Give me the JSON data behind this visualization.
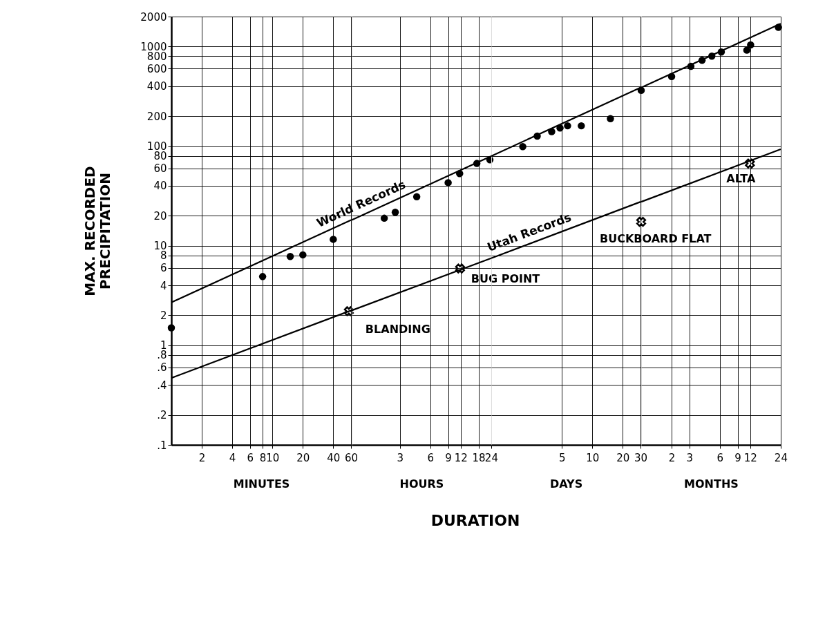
{
  "chart_data": [
    {
      "type": "scatter",
      "xlabel": "MINUTES",
      "ylabel": "MAX. RECORDED\nPRECIPITATION",
      "log": "xy",
      "grid": true,
      "xlim": [
        1,
        60
      ],
      "xticks": [
        2,
        4,
        6,
        8,
        10,
        20,
        40,
        60
      ],
      "ylim": [
        0.1,
        2000
      ],
      "yticks": [
        {
          "value": 0.1,
          "label": ".1"
        },
        {
          "value": 0.2,
          "label": ".2"
        },
        {
          "value": 0.4,
          "label": ".4"
        },
        {
          "value": 0.6,
          "label": ".6"
        },
        {
          "value": 0.8,
          "label": ".8"
        },
        1,
        2,
        4,
        6,
        8,
        10,
        20,
        40,
        60,
        80,
        100,
        200,
        400,
        600,
        800,
        1000,
        2000
      ],
      "series": [
        {
          "type": "line",
          "color": "#000000",
          "x": [
            1,
            60
          ],
          "values": [
            2.7,
            18.1
          ]
        },
        {
          "marker": "circle",
          "color": "#000000",
          "x": [
            1,
            8,
            15,
            20,
            40
          ],
          "values": [
            1.5,
            4.9,
            7.8,
            8.1,
            11.6
          ]
        },
        {
          "type": "line",
          "color": "#000000",
          "x": [
            1,
            60
          ],
          "values": [
            0.47,
            2.24
          ]
        },
        {
          "marker": "cross",
          "color": "#000000",
          "x": [
            57
          ],
          "values": [
            2.2
          ]
        }
      ],
      "annotations": [
        {
          "text": "BLANDING",
          "x": 57,
          "y": 2.2
        },
        "DURATION"
      ]
    },
    {
      "type": "scatter",
      "xlabel": "HOURS",
      "log": "xy",
      "grid": true,
      "tick_labels": "x",
      "xlim": [
        1,
        24
      ],
      "xticks": [
        3,
        6,
        9,
        12,
        18,
        24
      ],
      "ylim": [
        0.1,
        2000
      ],
      "yticks": [
        0.1,
        0.2,
        0.4,
        0.6,
        0.8,
        1,
        2,
        4,
        6,
        8,
        10,
        20,
        40,
        60,
        80,
        100,
        200,
        400,
        600,
        800,
        1000,
        2000
      ],
      "series": [
        {
          "name": "World Records",
          "type": "line",
          "color": "#000000",
          "x": [
            1,
            24
          ],
          "values": [
            18.1,
            79.5
          ]
        },
        {
          "marker": "circle",
          "color": "#000000",
          "x": [
            2.1,
            2.7,
            4.4,
            9,
            11.7,
            17.3,
            23.3
          ],
          "values": [
            18.9,
            21.7,
            31,
            43,
            53,
            67,
            73
          ]
        },
        {
          "type": "line",
          "color": "#000000",
          "x": [
            1,
            24
          ],
          "values": [
            2.24,
            7.5
          ]
        },
        {
          "marker": "cross",
          "color": "#000000",
          "x": [
            11.8
          ],
          "values": [
            5.9
          ]
        }
      ],
      "annotations": [
        {
          "text": "BUG POINT",
          "x": 11.8,
          "y": 5.9
        }
      ]
    },
    {
      "type": "scatter",
      "xlabel": "DAYS",
      "log": "xy",
      "grid": true,
      "tick_labels": "x",
      "xlim": [
        1,
        30
      ],
      "xticks": [
        5,
        10,
        20,
        30
      ],
      "ylim": [
        0.1,
        2000
      ],
      "yticks": [
        0.1,
        0.2,
        0.4,
        0.6,
        0.8,
        1,
        2,
        4,
        6,
        8,
        10,
        20,
        40,
        60,
        80,
        100,
        200,
        400,
        600,
        800,
        1000,
        2000
      ],
      "series": [
        {
          "type": "line",
          "color": "#000000",
          "x": [
            1,
            30
          ],
          "values": [
            79.5,
            387
          ]
        },
        {
          "marker": "circle",
          "color": "#000000",
          "x": [
            2.05,
            2.85,
            3.96,
            4.79,
            5.69,
            7.78,
            15.1
          ],
          "values": [
            99,
            126,
            140,
            152,
            160,
            160,
            189
          ]
        },
        {
          "name": "Utah Records",
          "type": "line",
          "color": "#000000",
          "x": [
            1,
            30
          ],
          "values": [
            7.5,
            27.6
          ]
        }
      ]
    },
    {
      "type": "scatter",
      "xlabel": "MONTHS",
      "log": "xy",
      "grid": true,
      "tick_labels": "x",
      "xlim": [
        1,
        24
      ],
      "xticks": [
        2,
        3,
        6,
        9,
        12,
        24
      ],
      "ylim": [
        0.1,
        2000
      ],
      "yticks": [
        0.1,
        0.2,
        0.4,
        0.6,
        0.8,
        1,
        2,
        4,
        6,
        8,
        10,
        20,
        40,
        60,
        80,
        100,
        200,
        400,
        600,
        800,
        1000,
        2000
      ],
      "series": [
        {
          "type": "line",
          "color": "#000000",
          "x": [
            1,
            24
          ],
          "values": [
            387,
            1700
          ]
        },
        {
          "marker": "circle",
          "color": "#000000",
          "x": [
            1.0,
            2.0,
            3.1,
            4.0,
            5.0,
            6.2,
            11.1,
            12.1,
            22.8
          ],
          "values": [
            363,
            500,
            633,
            727,
            801,
            883,
            920,
            1040,
            1560
          ]
        },
        {
          "type": "line",
          "color": "#000000",
          "x": [
            1,
            24
          ],
          "values": [
            27.6,
            93
          ]
        },
        {
          "marker": "cross",
          "color": "#000000",
          "x": [
            1.0,
            11.9
          ],
          "values": [
            17.4,
            67
          ]
        }
      ],
      "annotations": [
        {
          "text": "BUCKBOARD FLAT",
          "x": 1.0,
          "y": 17.4
        },
        {
          "text": "ALTA",
          "x": 11.9,
          "y": 67
        }
      ]
    }
  ]
}
